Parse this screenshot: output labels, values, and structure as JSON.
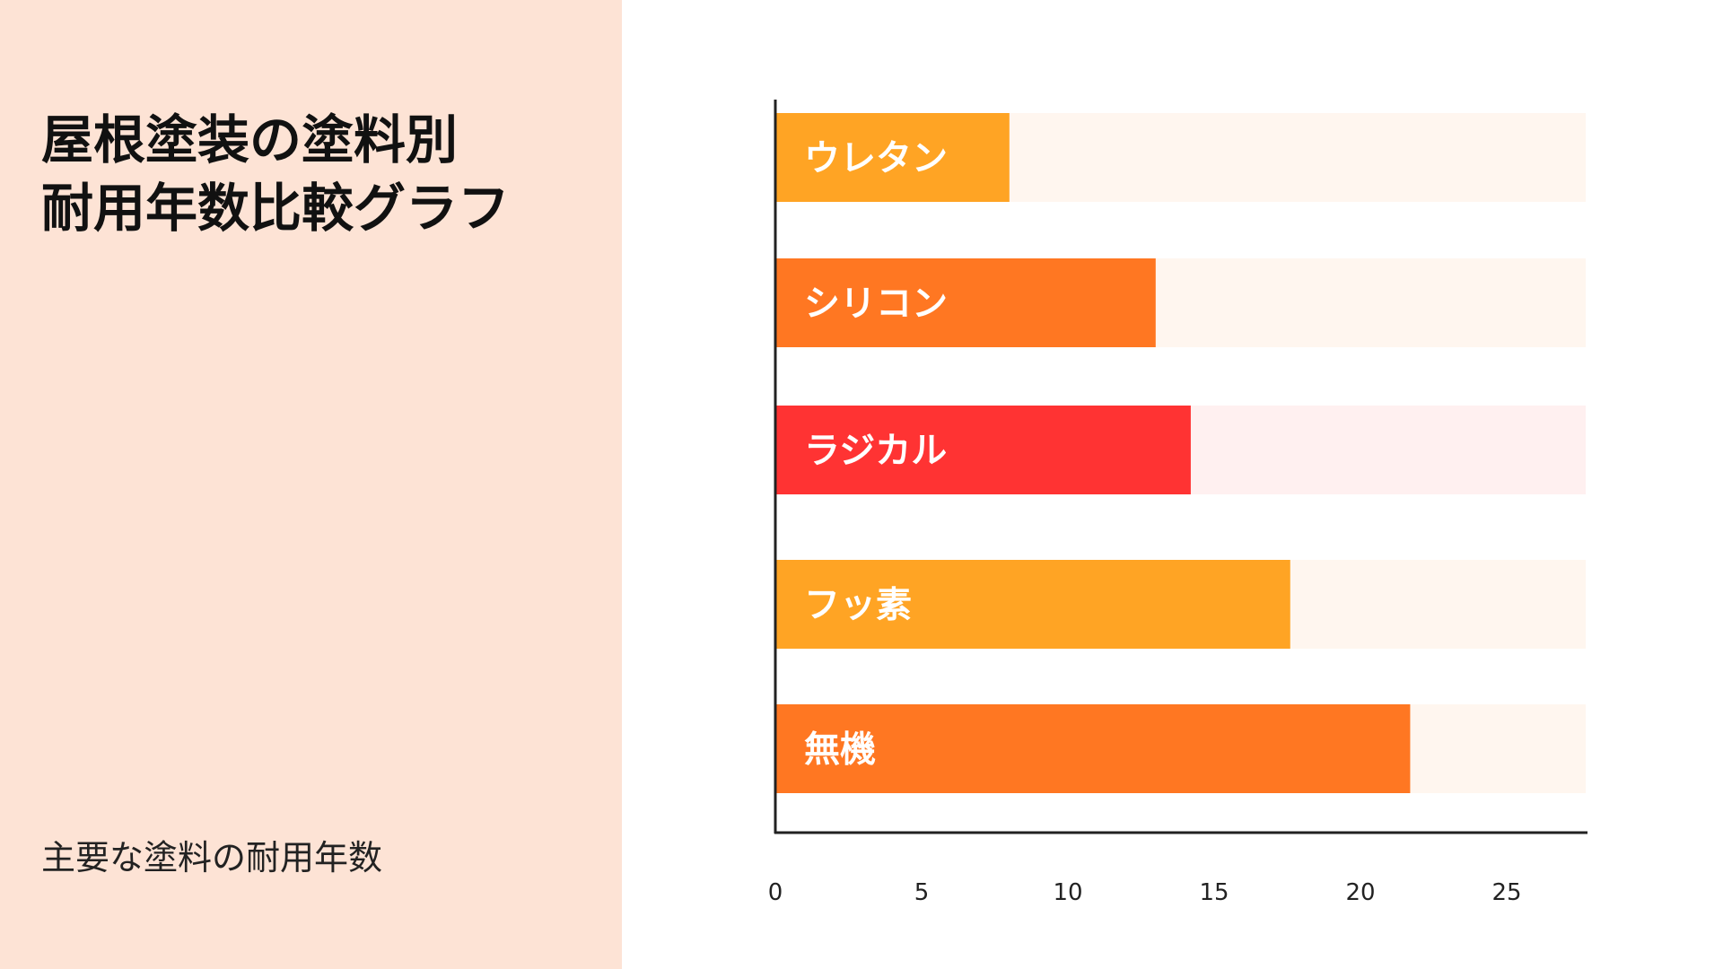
{
  "title_lines": [
    "屋根塗装の塗料別",
    "耐用年数比較グラフ"
  ],
  "subtitle": "主要な塗料の耐用年数",
  "chart_data": {
    "type": "bar",
    "orientation": "horizontal",
    "categories": [
      "ウレタン",
      "シリコン",
      "ラジカル",
      "フッ素",
      "無機"
    ],
    "values": [
      8,
      13,
      14.2,
      17.6,
      21.7
    ],
    "bar_colors": [
      "#FFA424",
      "#FF7722",
      "#FF3333",
      "#FFA424",
      "#FF7722"
    ],
    "track_colors": [
      "#FFF6EF",
      "#FFF6EF",
      "#FFF0F0",
      "#FFF6EF",
      "#FFF6EF"
    ],
    "xticks": [
      "0",
      "5",
      "10",
      "15",
      "20",
      "25"
    ],
    "xlim": [
      0,
      27.7
    ],
    "grid": false,
    "labels_inside_bars": true
  }
}
